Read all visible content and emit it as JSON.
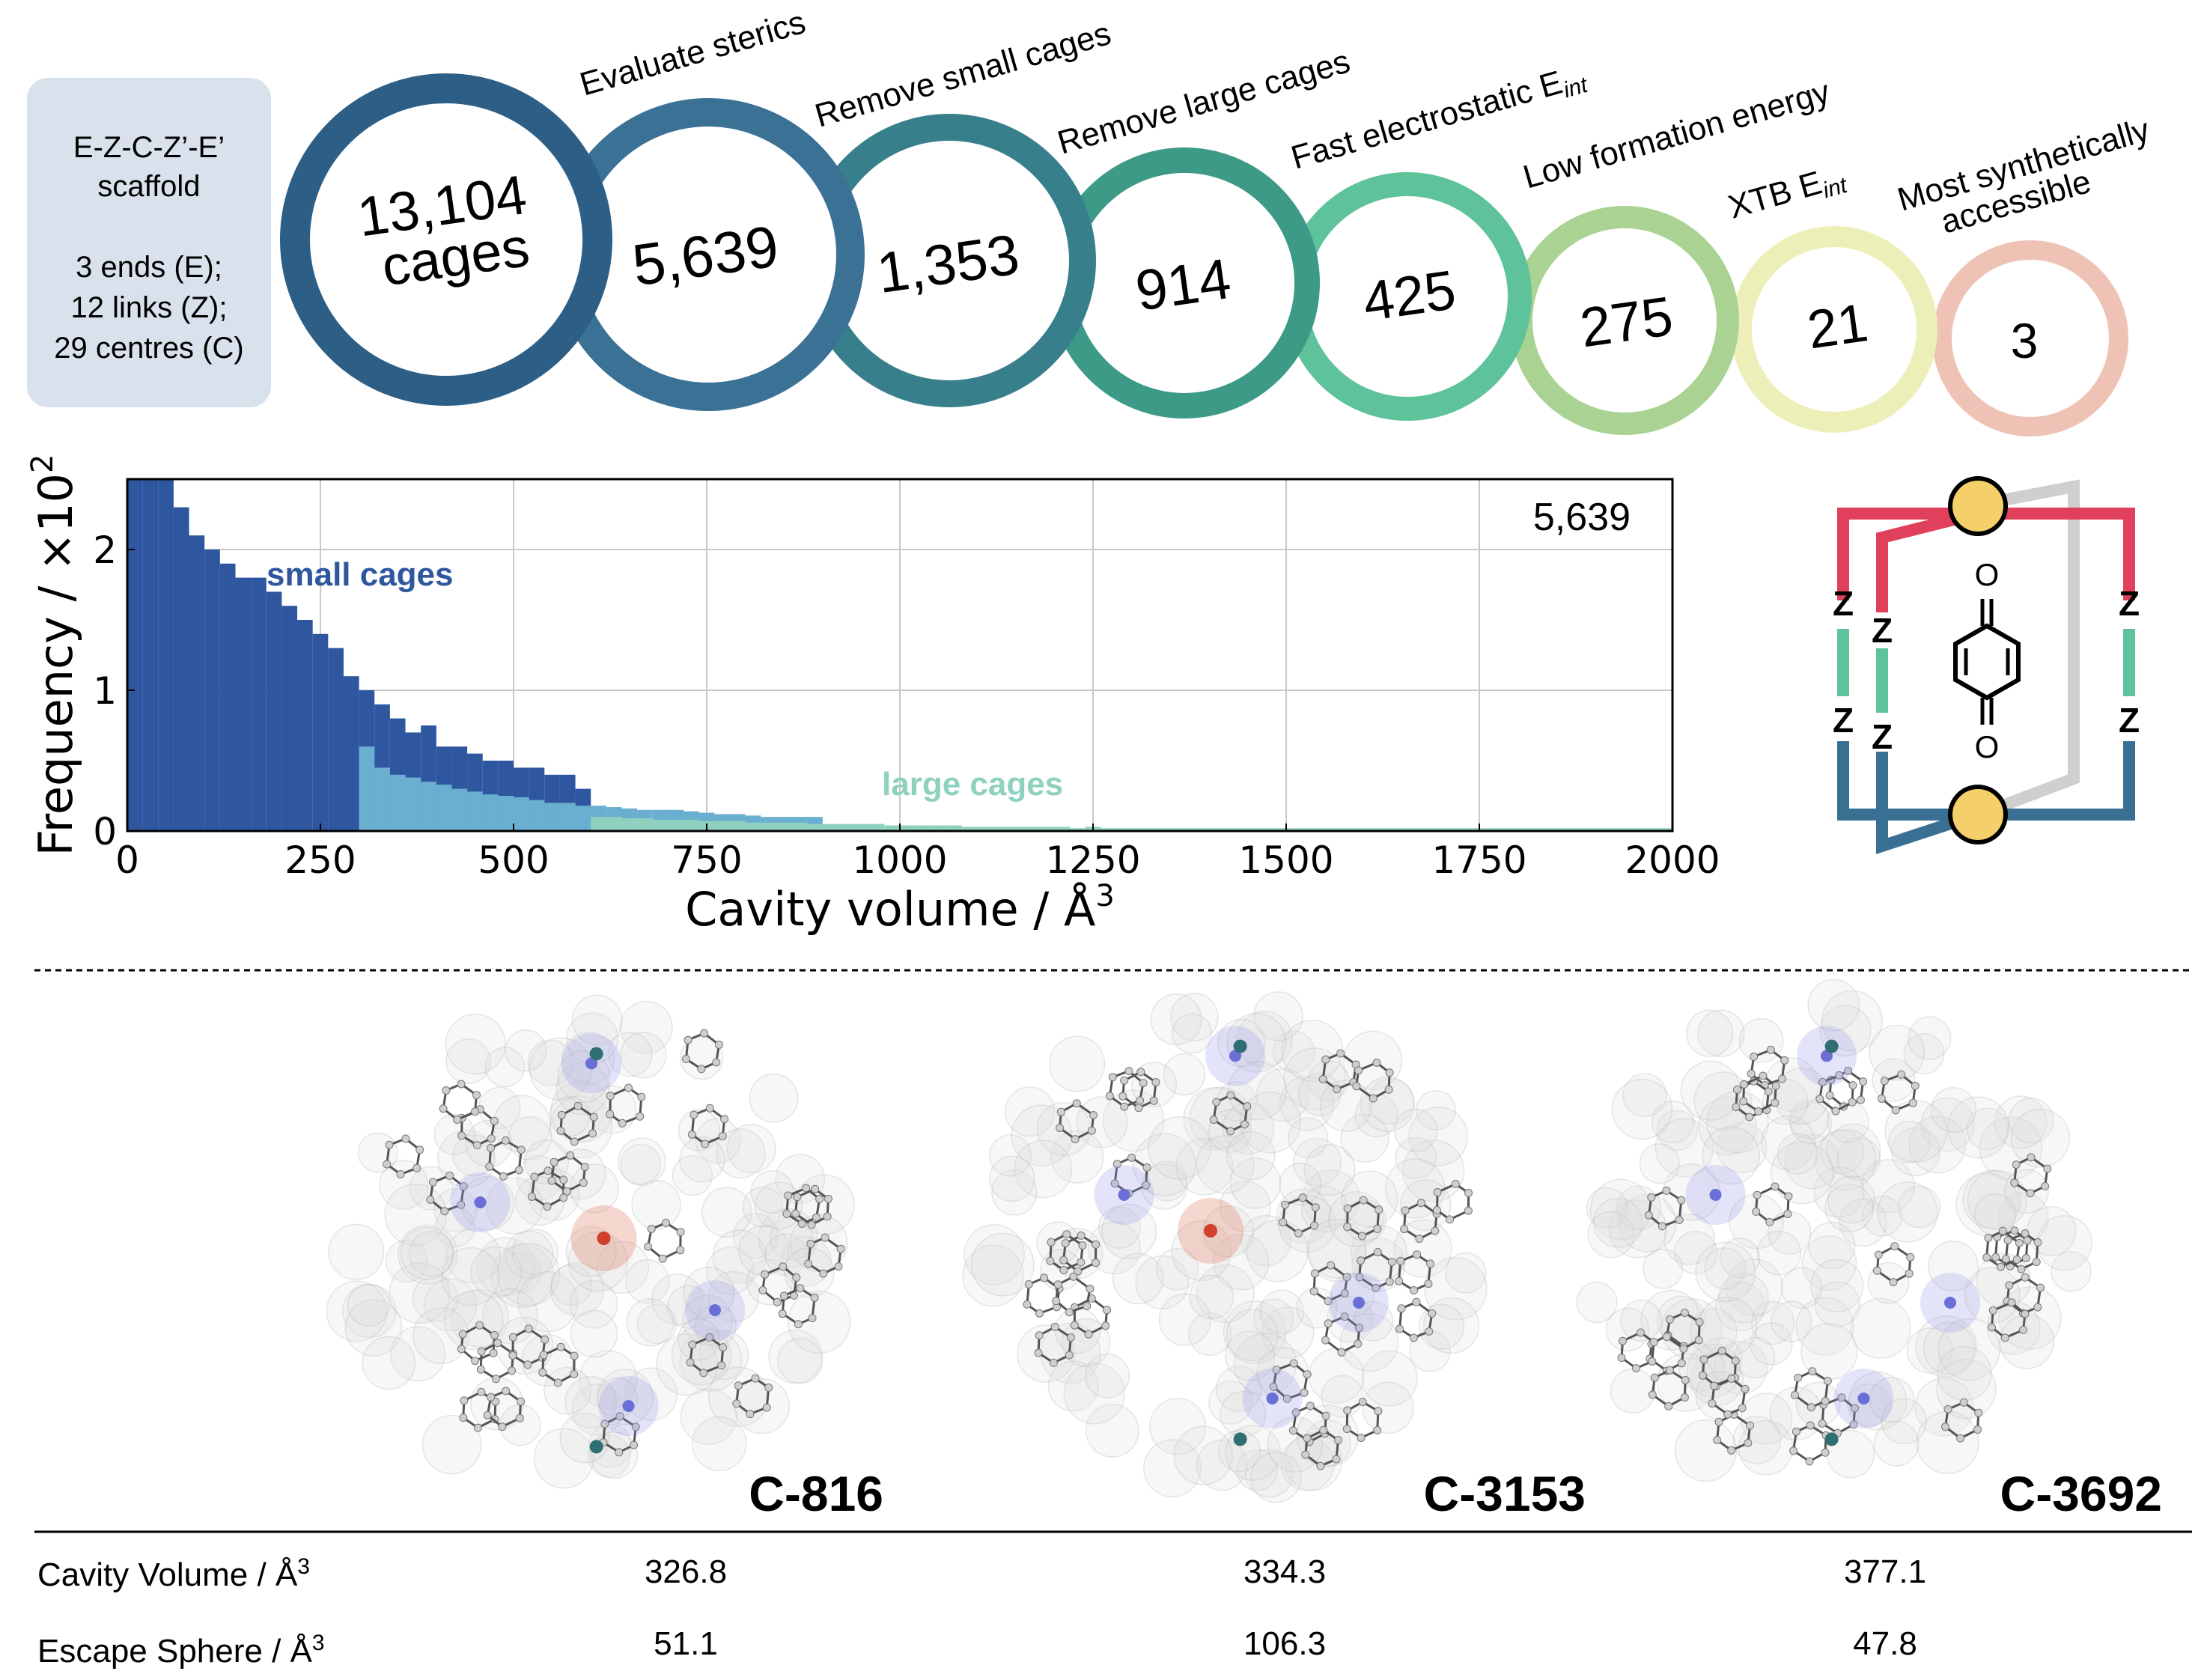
{
  "scaffold_box": {
    "line1": "E-Z-C-Z’-E’",
    "line2": "scaffold",
    "line3": "3 ends (E);",
    "line4": "12 links (Z);",
    "line5": "29 centres (C)"
  },
  "funnel": [
    {
      "value": "13,104",
      "value2": "cages",
      "label": "",
      "color": "#2d5f86"
    },
    {
      "value": "5,639",
      "label": "Evaluate sterics",
      "color": "#3c7196"
    },
    {
      "value": "1,353",
      "label": "Remove small cages",
      "color": "#387f8c"
    },
    {
      "value": "914",
      "label": "Remove large cages",
      "color": "#3d9a87"
    },
    {
      "value": "425",
      "label": "Fast electrostatic E",
      "sub": "int",
      "color": "#5ec29a"
    },
    {
      "value": "275",
      "label": "Low formation energy",
      "color": "#a9d293"
    },
    {
      "value": "21",
      "label": "XTB E",
      "sub": "int",
      "color": "#ecefb8"
    },
    {
      "value": "3",
      "label": "Most synthetically",
      "label2": "accessible",
      "color": "#eec3b5"
    }
  ],
  "chart_data": {
    "type": "bar",
    "title": "",
    "annotation": "5,639",
    "xlabel": "Cavity volume / Å",
    "xlabel_sup": "3",
    "ylabel": "Frequency / ×10",
    "ylabel_sup": "2",
    "xlim": [
      0,
      2000
    ],
    "ylim": [
      0,
      2.5
    ],
    "xticks": [
      "0",
      "250",
      "500",
      "750",
      "1000",
      "1250",
      "1500",
      "1750",
      "2000"
    ],
    "yticks": [
      "0",
      "1",
      "2"
    ],
    "grid": true,
    "bin_width": 20,
    "series": [
      {
        "name": "small cages",
        "color": "#2e57a0",
        "x_range": [
          0,
          300
        ],
        "values": [
          2.5,
          2.5,
          2.5,
          2.3,
          2.1,
          2.0,
          1.9,
          1.8,
          1.8,
          1.7,
          1.6,
          1.5,
          1.4,
          1.3,
          1.1,
          1.0,
          0.9,
          0.8,
          0.7,
          0.75,
          0.6,
          0.6,
          0.55,
          0.5,
          0.5,
          0.45,
          0.45,
          0.4,
          0.4,
          0.3
        ]
      },
      {
        "name": "",
        "color": "#6aafd0",
        "x_range": [
          300,
          600
        ],
        "values": [
          0.6,
          0.45,
          0.4,
          0.38,
          0.35,
          0.33,
          0.3,
          0.28,
          0.26,
          0.25,
          0.24,
          0.22,
          0.2,
          0.2,
          0.18,
          0.18,
          0.17,
          0.16,
          0.15,
          0.15,
          0.15,
          0.14,
          0.13,
          0.12,
          0.12,
          0.11,
          0.1,
          0.1,
          0.1,
          0.1
        ]
      },
      {
        "name": "large cages",
        "color": "#8fd1bf",
        "x_range": [
          600,
          2000
        ],
        "values": [
          0.1,
          0.1,
          0.09,
          0.09,
          0.08,
          0.08,
          0.08,
          0.07,
          0.07,
          0.07,
          0.06,
          0.06,
          0.06,
          0.06,
          0.05,
          0.05,
          0.05,
          0.05,
          0.05,
          0.04,
          0.04,
          0.04,
          0.04,
          0.04,
          0.03,
          0.03,
          0.03,
          0.03,
          0.03,
          0.03,
          0.03,
          0.02,
          0.03,
          0.02,
          0.02,
          0.02,
          0.02,
          0.02,
          0.02,
          0.02,
          0.02,
          0.02,
          0.02,
          0.02,
          0.02,
          0.02,
          0.02,
          0.02,
          0.02,
          0.02,
          0.02,
          0.02,
          0.02,
          0.02,
          0.02,
          0.02,
          0.02,
          0.02,
          0.02,
          0.02,
          0.02,
          0.02,
          0.02,
          0.02,
          0.02,
          0.02,
          0.02,
          0.02,
          0.02,
          0.02
        ]
      }
    ],
    "annotations": [
      {
        "text": "small cages",
        "color": "#2e57a0"
      },
      {
        "text": "large cages",
        "color": "#8fd1bf"
      }
    ]
  },
  "scaffold_diagram": {
    "link_label": "Z",
    "oxygen_label": "O",
    "colors": {
      "top": "#e0405a",
      "middle": "#5ec29a",
      "bottom": "#3a6f94",
      "grey": "#cfcfcf",
      "node": "#f5cf6a"
    }
  },
  "molecules": [
    {
      "name": "C-816"
    },
    {
      "name": "C-3153"
    },
    {
      "name": "C-3692"
    }
  ],
  "table": {
    "rows": [
      {
        "label": "Cavity Volume / Å",
        "sup": "3",
        "values": [
          "326.8",
          "334.3",
          "377.1"
        ]
      },
      {
        "label": "Escape Sphere / Å",
        "sup": "3",
        "values": [
          "51.1",
          "106.3",
          "47.8"
        ]
      }
    ]
  }
}
